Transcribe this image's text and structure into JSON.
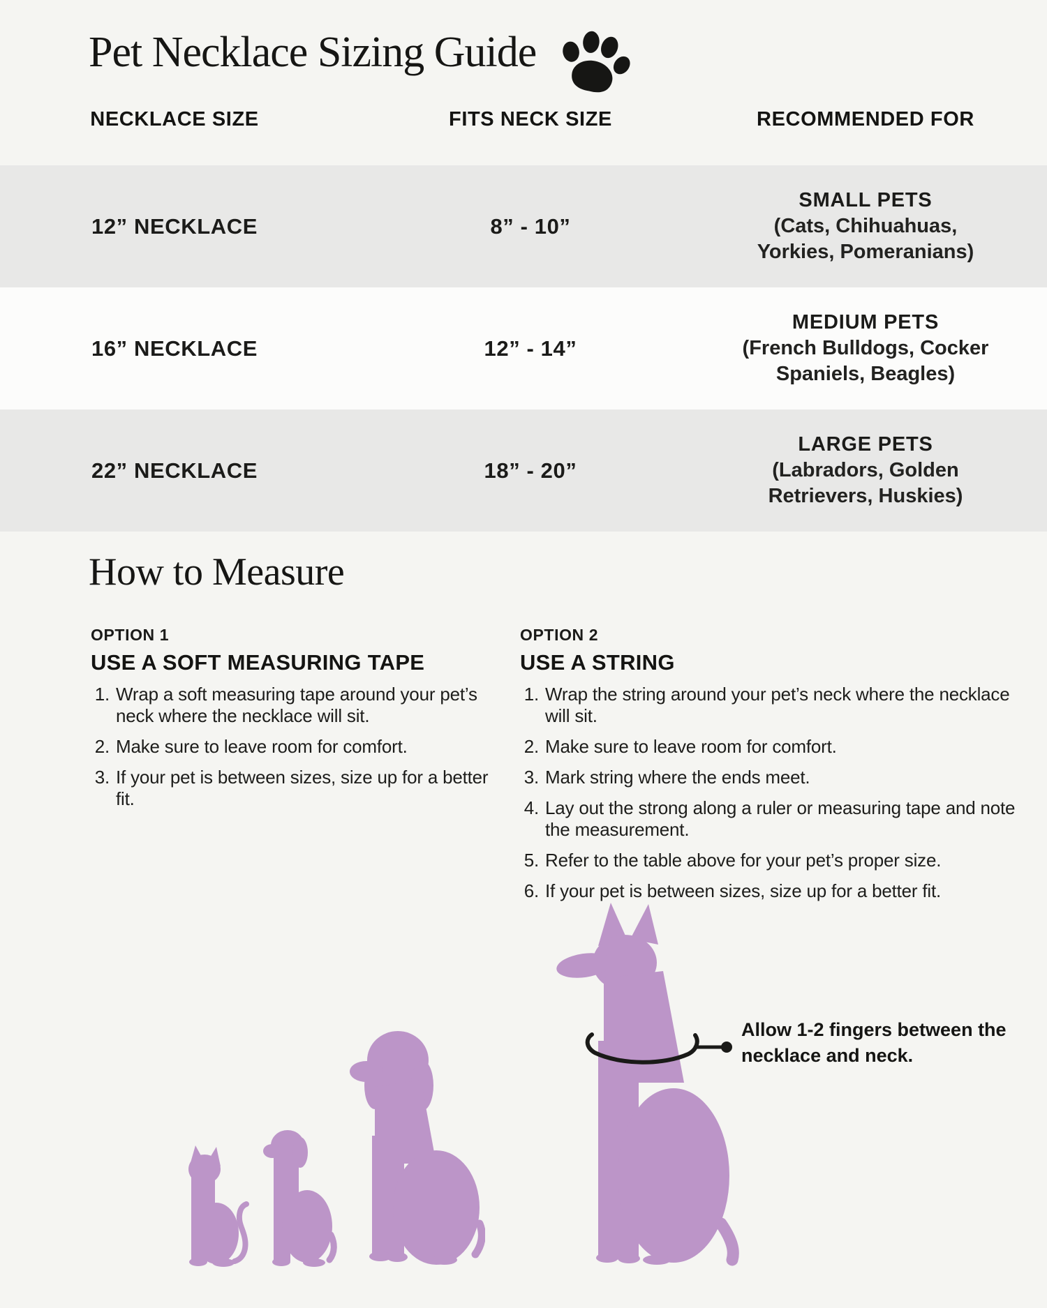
{
  "title": "Pet Necklace Sizing Guide",
  "icons": {
    "title_icon": "paw-print",
    "annotation_pointer": "leader-line-with-dot",
    "illustration_icons": [
      "cat-silhouette",
      "small-dog-silhouette",
      "medium-dog-silhouette",
      "large-dog-silhouette"
    ],
    "collar_icon": "necklace-curve"
  },
  "colors": {
    "page_bg": "#f5f5f2",
    "row_stripe": "#e8e8e7",
    "row_white": "#fcfcfb",
    "text": "#1c1c1a",
    "silhouette_purple": "#bc95c8",
    "annotation_black": "#1a1a18"
  },
  "size_table": {
    "headers": [
      "NECKLACE SIZE",
      "FITS NECK SIZE",
      "RECOMMENDED FOR"
    ],
    "rows": [
      {
        "size": "12” NECKLACE",
        "fits": "8” - 10”",
        "rec_title": "SMALL PETS",
        "rec_lines": [
          "(Cats, Chihuahuas,",
          "Yorkies, Pomeranians)"
        ]
      },
      {
        "size": "16” NECKLACE",
        "fits": "12” - 14”",
        "rec_title": "MEDIUM PETS",
        "rec_lines": [
          "(French Bulldogs, Cocker",
          "Spaniels, Beagles)"
        ]
      },
      {
        "size": "22” NECKLACE",
        "fits": "18” - 20”",
        "rec_title": "LARGE PETS",
        "rec_lines": [
          "(Labradors, Golden",
          "Retrievers, Huskies)"
        ]
      }
    ]
  },
  "how_to_measure": {
    "heading": "How to Measure",
    "options": [
      {
        "label": "OPTION 1",
        "title": "USE A SOFT MEASURING TAPE",
        "steps": [
          "Wrap a soft measuring tape around your pet’s neck where the necklace will sit.",
          "Make sure to leave room for comfort.",
          "If your pet is between sizes, size up for a better fit."
        ]
      },
      {
        "label": "OPTION 2",
        "title": "USE A STRING",
        "steps": [
          "Wrap the string around your pet’s neck where the necklace will sit.",
          "Make sure to leave room for comfort.",
          "Mark string where the ends meet.",
          "Lay out the strong along a ruler or measuring tape and note the measurement.",
          "Refer to the table above for your pet’s proper size.",
          "If your pet is between sizes, size up for a better fit."
        ]
      }
    ]
  },
  "annotation": {
    "text": "Allow 1-2 fingers between the necklace and neck."
  }
}
